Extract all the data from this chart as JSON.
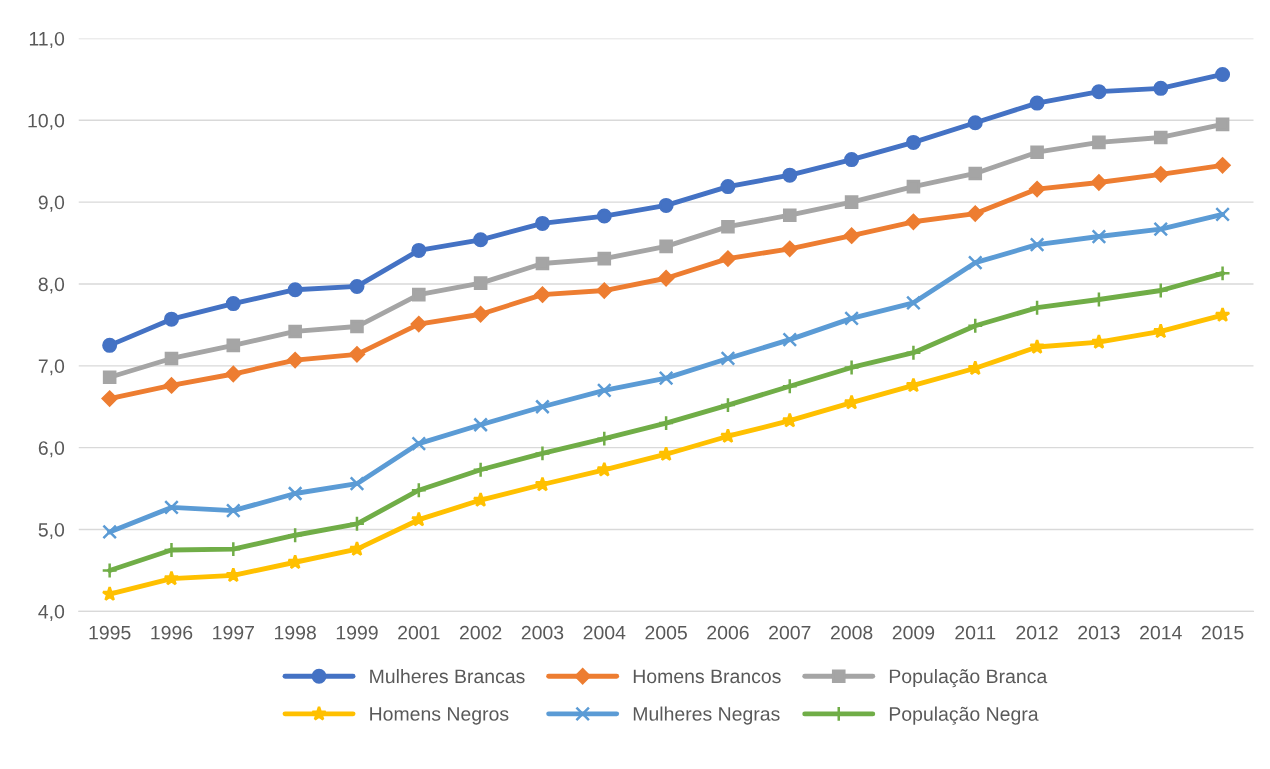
{
  "chart_data": {
    "type": "line",
    "categories": [
      "1995",
      "1996",
      "1997",
      "1998",
      "1999",
      "2001",
      "2002",
      "2003",
      "2004",
      "2005",
      "2006",
      "2007",
      "2008",
      "2009",
      "2011",
      "2012",
      "2013",
      "2014",
      "2015"
    ],
    "series": [
      {
        "name": "Mulheres Brancas",
        "color": "#4472c4",
        "marker": "circle",
        "values": [
          7.25,
          7.57,
          7.76,
          7.93,
          7.97,
          8.41,
          8.54,
          8.74,
          8.83,
          8.96,
          9.19,
          9.33,
          9.52,
          9.73,
          9.97,
          10.21,
          10.35,
          10.39,
          10.56
        ]
      },
      {
        "name": "Homens Brancos",
        "color": "#ed7d31",
        "marker": "diamond",
        "values": [
          6.6,
          6.76,
          6.9,
          7.07,
          7.14,
          7.51,
          7.63,
          7.87,
          7.92,
          8.07,
          8.31,
          8.43,
          8.59,
          8.76,
          8.86,
          9.16,
          9.24,
          9.34,
          9.45
        ]
      },
      {
        "name": "População Branca",
        "color": "#a5a5a5",
        "marker": "square",
        "values": [
          6.86,
          7.09,
          7.25,
          7.42,
          7.48,
          7.87,
          8.01,
          8.25,
          8.31,
          8.46,
          8.7,
          8.84,
          9.0,
          9.19,
          9.35,
          9.61,
          9.73,
          9.79,
          9.95
        ]
      },
      {
        "name": "Homens Negros",
        "color": "#ffc000",
        "marker": "star",
        "values": [
          4.21,
          4.4,
          4.44,
          4.6,
          4.76,
          5.12,
          5.36,
          5.55,
          5.73,
          5.92,
          6.14,
          6.33,
          6.55,
          6.76,
          6.97,
          7.23,
          7.29,
          7.42,
          7.62
        ]
      },
      {
        "name": "Mulheres Negras",
        "color": "#5b9bd5",
        "marker": "cross",
        "values": [
          4.97,
          5.27,
          5.23,
          5.44,
          5.56,
          6.05,
          6.28,
          6.5,
          6.7,
          6.85,
          7.09,
          7.32,
          7.58,
          7.77,
          8.26,
          8.48,
          8.58,
          8.67,
          8.85
        ]
      },
      {
        "name": "População Negra",
        "color": "#70ad47",
        "marker": "plus",
        "values": [
          4.5,
          4.75,
          4.76,
          4.93,
          5.07,
          5.48,
          5.73,
          5.93,
          6.11,
          6.3,
          6.52,
          6.75,
          6.98,
          7.16,
          7.49,
          7.71,
          7.81,
          7.92,
          8.13
        ]
      }
    ],
    "ylim": [
      4,
      11
    ],
    "yticks": [
      {
        "value": 4,
        "label": "4,0"
      },
      {
        "value": 5,
        "label": "5,0"
      },
      {
        "value": 6,
        "label": "6,0"
      },
      {
        "value": 7,
        "label": "7,0"
      },
      {
        "value": 8,
        "label": "8,0"
      },
      {
        "value": 9,
        "label": "9,0"
      },
      {
        "value": 10,
        "label": "10,0"
      },
      {
        "value": 11,
        "label": "11,0"
      }
    ],
    "grid": "y",
    "legend": "bottom",
    "line_style": "solid"
  }
}
